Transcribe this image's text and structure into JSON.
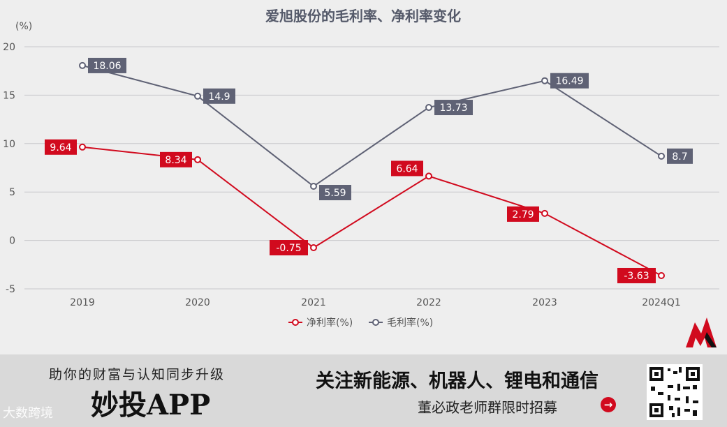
{
  "chart_data": {
    "type": "line",
    "title": "爱旭股份的毛利率、净利率变化",
    "ylabel": "(%)",
    "categories": [
      "2019",
      "2020",
      "2021",
      "2022",
      "2023",
      "2024Q1"
    ],
    "ylim": [
      -5,
      20
    ],
    "yticks": [
      -5,
      0,
      5,
      10,
      15,
      20
    ],
    "grid": true,
    "legend_position": "bottom",
    "series": [
      {
        "name": "净利率(%)",
        "color": "#d10a1e",
        "values": [
          9.64,
          8.34,
          -0.75,
          6.64,
          2.79,
          -3.63
        ],
        "labels": [
          "9.64",
          "8.34",
          "-0.75",
          "6.64",
          "2.79",
          "-3.63"
        ],
        "label_side": "left"
      },
      {
        "name": "毛利率(%)",
        "color": "#5f6275",
        "values": [
          18.06,
          14.9,
          5.59,
          13.73,
          16.49,
          8.7
        ],
        "labels": [
          "18.06",
          "14.9",
          "5.59",
          "13.73",
          "16.49",
          "8.7"
        ],
        "label_side": "right"
      }
    ]
  },
  "banner": {
    "slogan": "助你的财富与认知同步升级",
    "app_name": "妙投APP",
    "watermark": "大数跨境",
    "headline": "关注新能源、机器人、锂电和通信",
    "sub": "董必政老师群限时招募",
    "arrow_icon": "→"
  }
}
